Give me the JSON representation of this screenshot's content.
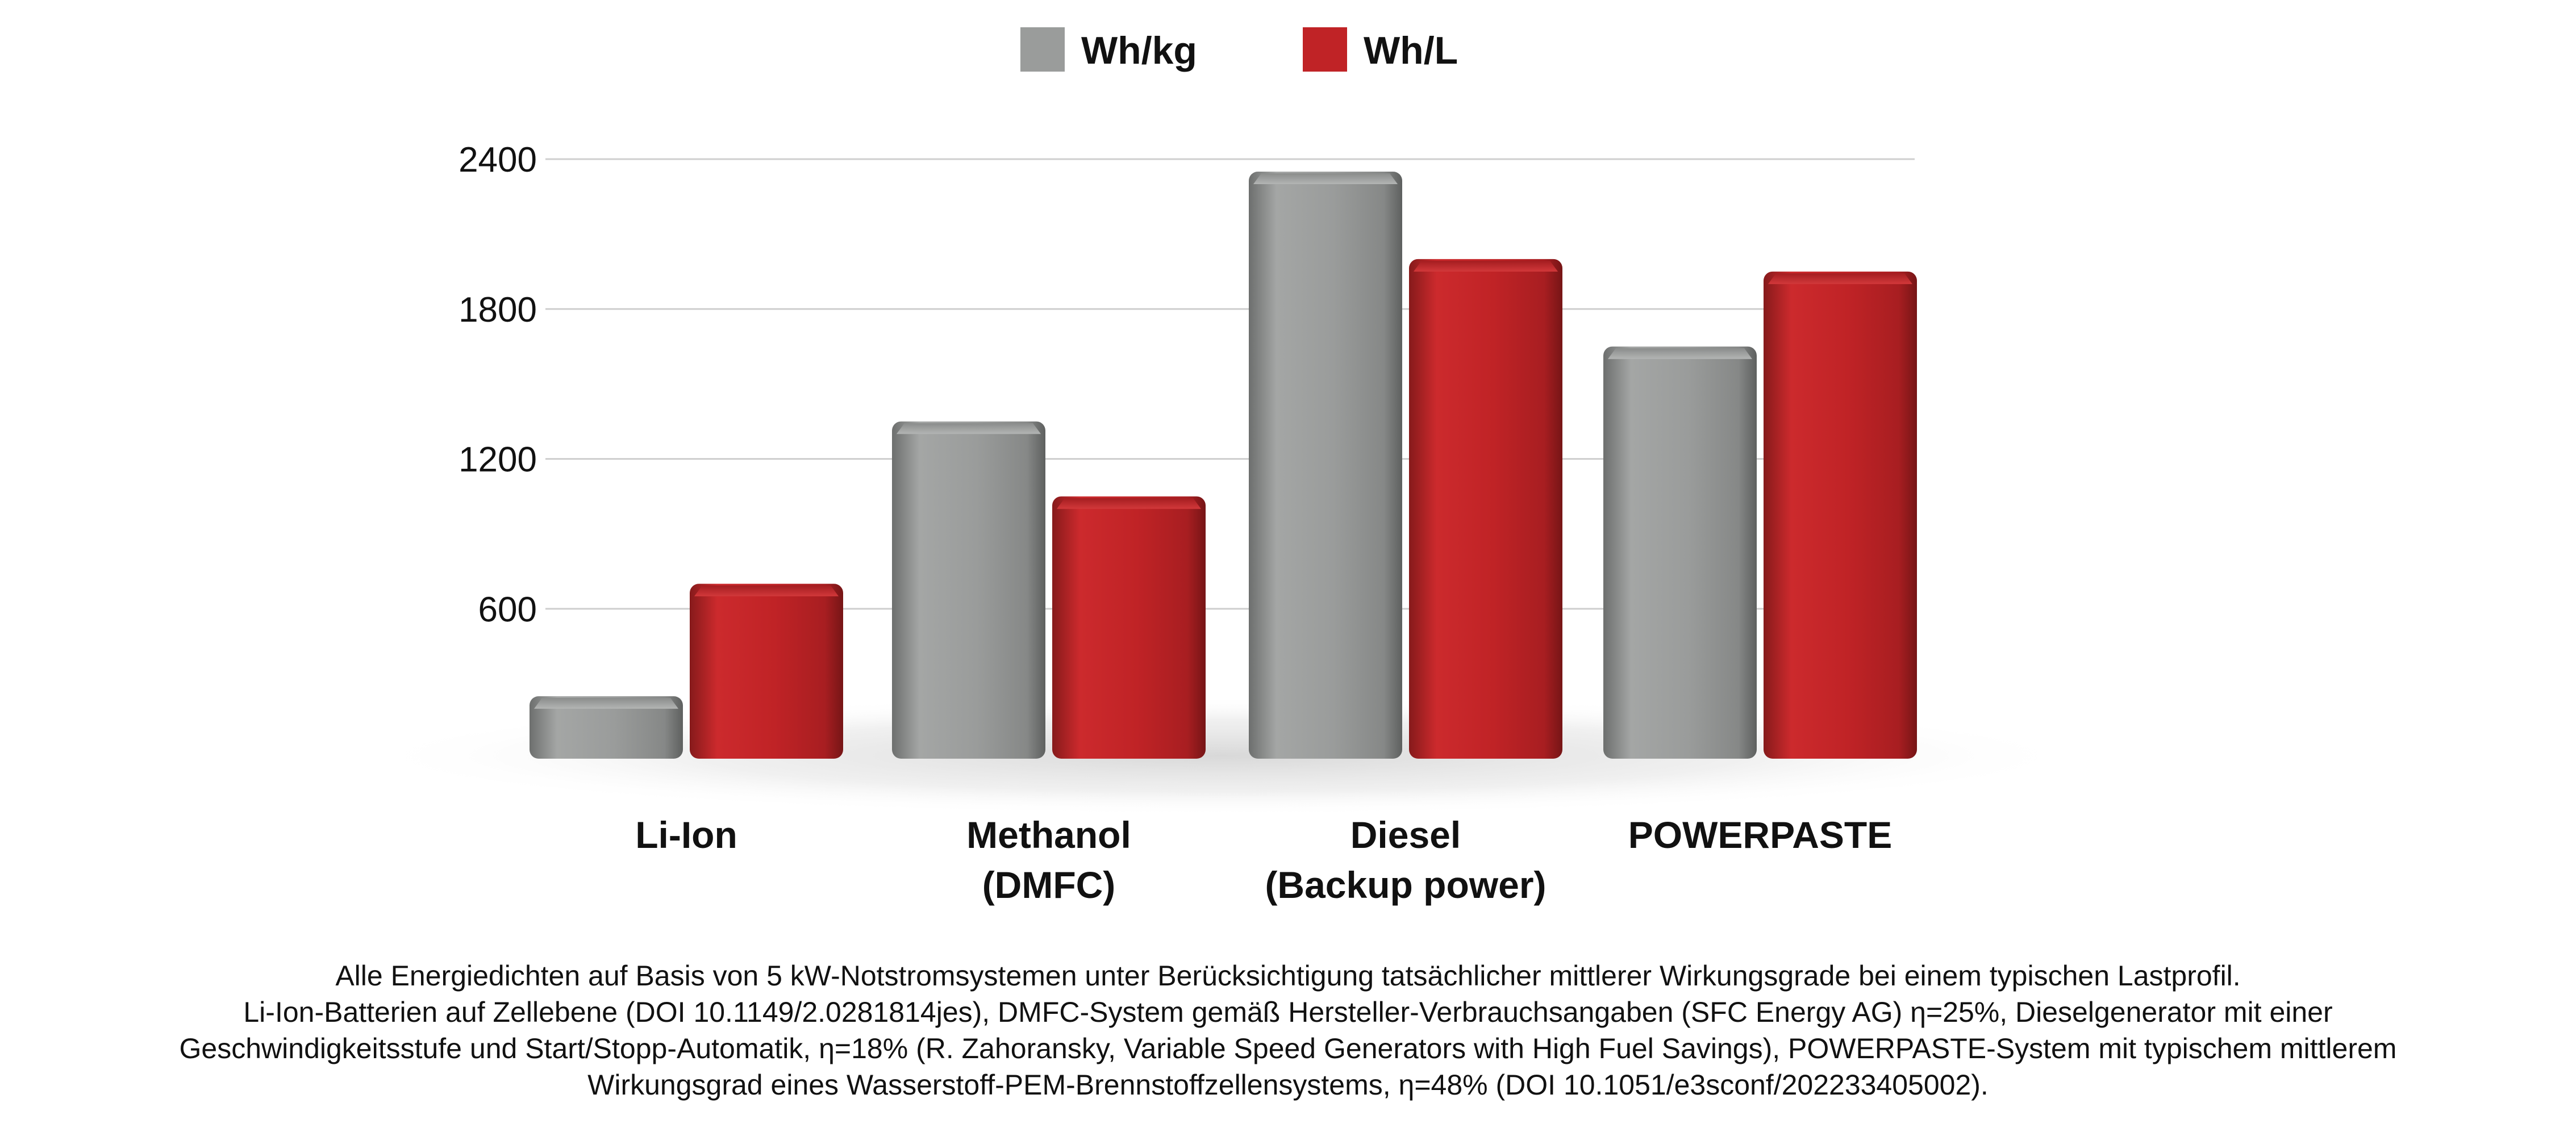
{
  "chart_data": {
    "type": "bar",
    "categories": [
      [
        "Li-Ion"
      ],
      [
        "Methanol",
        "(DMFC)"
      ],
      [
        "Diesel",
        "(Backup power)"
      ],
      [
        "POWERPASTE"
      ]
    ],
    "series": [
      {
        "name": "Wh/kg",
        "color": "#9a9c9b",
        "values": [
          250,
          1350,
          2350,
          1650
        ]
      },
      {
        "name": "Wh/L",
        "color": "#c02326",
        "values": [
          700,
          1050,
          2000,
          1950
        ]
      }
    ],
    "ylim": [
      0,
      2400
    ],
    "yticks": [
      "600",
      "1200",
      "1800",
      "2400"
    ],
    "ytick_values": [
      600,
      1200,
      1800,
      2400
    ],
    "grid": true,
    "legend": "top-center",
    "style": "3d-bars"
  },
  "footnote": {
    "lines": [
      "Alle Energiedichten auf Basis von 5 kW-Notstromsystemen unter Berücksichtigung tatsächlicher mittlerer Wirkungsgrade bei einem typischen Lastprofil.",
      "Li-Ion-Batterien auf Zellebene (DOI 10.1149/2.0281814jes), DMFC-System gemäß Hersteller-Verbrauchsangaben (SFC Energy AG) η=25%, Dieselgenerator mit einer",
      "Geschwindigkeitsstufe und Start/Stopp-Automatik, η=18% (R. Zahoransky, Variable Speed Generators with High Fuel Savings), POWERPASTE-System mit typischem mittlerem",
      "Wirkungsgrad eines Wasserstoff-PEM-Brennstoffzellensystems, η=48% (DOI 10.1051/e3sconf/202233405002)."
    ]
  }
}
